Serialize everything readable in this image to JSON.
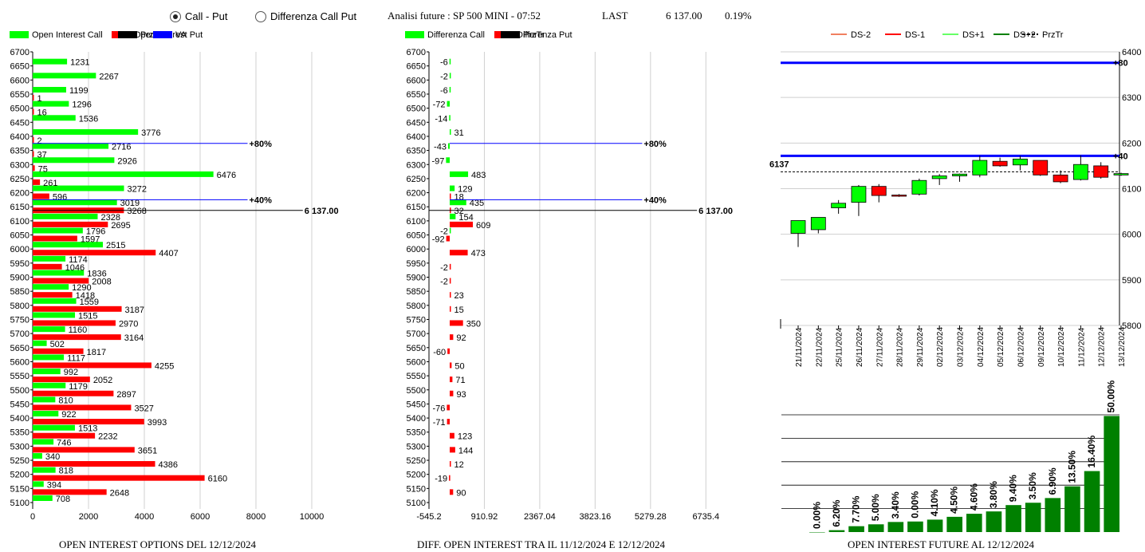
{
  "header": {
    "radio_call_put": "Call - Put",
    "radio_diff": "Differenza Call Put",
    "title": "Analisi future : SP 500 MINI - 07:52",
    "last_label": "LAST",
    "last_value": "6 137.00",
    "last_change": "0.19%"
  },
  "colors": {
    "call": "#00ff00",
    "put": "#ff0000",
    "va": "#0000ff",
    "black": "#000000",
    "dark_green": "#008000",
    "light_green": "#22ee22"
  },
  "chart_data": [
    {
      "type": "bar",
      "orientation": "horizontal",
      "caption": "OPEN INTEREST OPTIONS DEL 12/12/2024",
      "legend": [
        "Open Interest Call",
        "Open Interest Put",
        "PrzTr",
        "VA"
      ],
      "categories": [
        "6700",
        "6650",
        "6600",
        "6550",
        "6500",
        "6450",
        "6400",
        "6350",
        "6300",
        "6250",
        "6200",
        "6150",
        "6100",
        "6050",
        "6000",
        "5950",
        "5900",
        "5850",
        "5800",
        "5750",
        "5700",
        "5650",
        "5600",
        "5550",
        "5500",
        "5450",
        "5400",
        "5350",
        "5300",
        "5250",
        "5200",
        "5150",
        "5100"
      ],
      "series": [
        {
          "name": "Open Interest Call",
          "values": [
            null,
            1231,
            2267,
            1199,
            1296,
            1536,
            3776,
            2716,
            2926,
            6476,
            3272,
            3019,
            2328,
            1796,
            2515,
            1174,
            1836,
            1290,
            1559,
            1515,
            1160,
            502,
            1117,
            992,
            1179,
            810,
            922,
            1513,
            746,
            340,
            818,
            394,
            708
          ]
        },
        {
          "name": "Open Interest Put",
          "values": [
            null,
            null,
            null,
            1,
            16,
            null,
            2,
            37,
            75,
            261,
            596,
            3268,
            2695,
            1597,
            4407,
            1046,
            2008,
            1418,
            3187,
            2970,
            3164,
            1817,
            4255,
            2052,
            2897,
            3527,
            3993,
            2232,
            3651,
            4386,
            6160,
            2648,
            null
          ]
        }
      ],
      "xticks": [
        "0",
        "2000",
        "4000",
        "6000",
        "8000",
        "10000"
      ],
      "xlim": [
        0,
        11000
      ],
      "annotations": [
        {
          "level": "6375",
          "text": "+80%"
        },
        {
          "level": "6175",
          "text": "+40%"
        },
        {
          "level": "6137",
          "text": "6 137.00"
        }
      ]
    },
    {
      "type": "bar",
      "orientation": "horizontal",
      "caption": "DIFF. OPEN INTEREST TRA IL 11/12/2024 E 12/12/2024",
      "legend": [
        "Differenza Call",
        "Differenza Put",
        "PrzTr"
      ],
      "categories": [
        "6700",
        "6650",
        "6600",
        "6550",
        "6500",
        "6450",
        "6400",
        "6350",
        "6300",
        "6250",
        "6200",
        "6150",
        "6100",
        "6050",
        "6000",
        "5950",
        "5900",
        "5850",
        "5800",
        "5750",
        "5700",
        "5650",
        "5600",
        "5550",
        "5500",
        "5450",
        "5400",
        "5350",
        "5300",
        "5250",
        "5200",
        "5150",
        "5100"
      ],
      "series": [
        {
          "name": "Differenza Call",
          "values": [
            null,
            -6,
            -2,
            -6,
            -72,
            -14,
            31,
            -43,
            -97,
            483,
            129,
            435,
            154,
            -2,
            null,
            null,
            null,
            null,
            null,
            null,
            null,
            null,
            null,
            null,
            null,
            null,
            null,
            null,
            null,
            null,
            null,
            null,
            null
          ]
        },
        {
          "name": "Differenza Put",
          "values": [
            null,
            null,
            null,
            null,
            null,
            null,
            null,
            null,
            null,
            null,
            18,
            32,
            609,
            -92,
            473,
            -2,
            -2,
            23,
            15,
            350,
            92,
            -60,
            50,
            71,
            93,
            -76,
            -71,
            123,
            144,
            12,
            -19,
            90,
            null
          ]
        }
      ],
      "xticks": [
        "-545.2",
        "910.92",
        "2367.04",
        "3823.16",
        "5279.28",
        "6735.4"
      ],
      "xlim": [
        -545.2,
        7463.46
      ],
      "annotations": [
        {
          "level": "6375",
          "text": "+80%"
        },
        {
          "level": "6175",
          "text": "+40%"
        },
        {
          "level": "6137",
          "text": "6 137.00"
        }
      ]
    },
    {
      "type": "candlestick",
      "legend": [
        "DS-2",
        "DS-1",
        "DS+1",
        "DS+2",
        "PrzTr"
      ],
      "categories": [
        "21/11/2024",
        "22/11/2024",
        "25/11/2024",
        "26/11/2024",
        "27/11/2024",
        "28/11/2024",
        "29/11/2024",
        "02/12/2024",
        "03/12/2024",
        "04/12/2024",
        "05/12/2024",
        "06/12/2024",
        "09/12/2024",
        "10/12/2024",
        "11/12/2024",
        "12/12/2024",
        "13/12/2024"
      ],
      "ohlc": [
        [
          6002,
          6030,
          5972,
          6030
        ],
        [
          6010,
          6037,
          6002,
          6037
        ],
        [
          6058,
          6075,
          6045,
          6068
        ],
        [
          6070,
          6108,
          6040,
          6105
        ],
        [
          6105,
          6110,
          6070,
          6085
        ],
        [
          6085,
          6088,
          6082,
          6086
        ],
        [
          6088,
          6122,
          6085,
          6118
        ],
        [
          6122,
          6132,
          6108,
          6128
        ],
        [
          6128,
          6133,
          6115,
          6132
        ],
        [
          6130,
          6172,
          6125,
          6162
        ],
        [
          6160,
          6168,
          6148,
          6150
        ],
        [
          6152,
          6172,
          6140,
          6165
        ],
        [
          6162,
          6162,
          6128,
          6130
        ],
        [
          6130,
          6140,
          6112,
          6115
        ],
        [
          6120,
          6173,
          6118,
          6153
        ],
        [
          6150,
          6158,
          6122,
          6125
        ],
        [
          6130,
          6135,
          6128,
          6133
        ]
      ],
      "bullish": [
        true,
        true,
        true,
        true,
        false,
        false,
        true,
        true,
        true,
        true,
        false,
        true,
        false,
        false,
        true,
        false,
        true
      ],
      "yticks": [
        "5800",
        "5900",
        "6000",
        "6100",
        "6200",
        "6300",
        "6400"
      ],
      "ylim": [
        5800,
        6400
      ],
      "price_label": "6137",
      "price_level": 6137,
      "hlines": [
        {
          "label": "+80",
          "level": 6376
        },
        {
          "label": "+40",
          "level": 6172
        }
      ]
    },
    {
      "type": "bar",
      "caption": "OPEN INTEREST FUTURE AL 12/12/2024",
      "labels": [
        "0.00%",
        "6.20%",
        "7.70%",
        "5.00%",
        "3.40%",
        "0.00%",
        "4.10%",
        "4.50%",
        "4.60%",
        "3.80%",
        "9.40%",
        "3.50%",
        "6.90%",
        "13.50%",
        "16.40%",
        "50.00%"
      ],
      "values": [
        0.0,
        0.8,
        2.5,
        3.3,
        4.3,
        4.5,
        5.3,
        6.5,
        7.8,
        8.8,
        11.5,
        12.5,
        14.5,
        19.5,
        26.0,
        49.5
      ]
    }
  ]
}
